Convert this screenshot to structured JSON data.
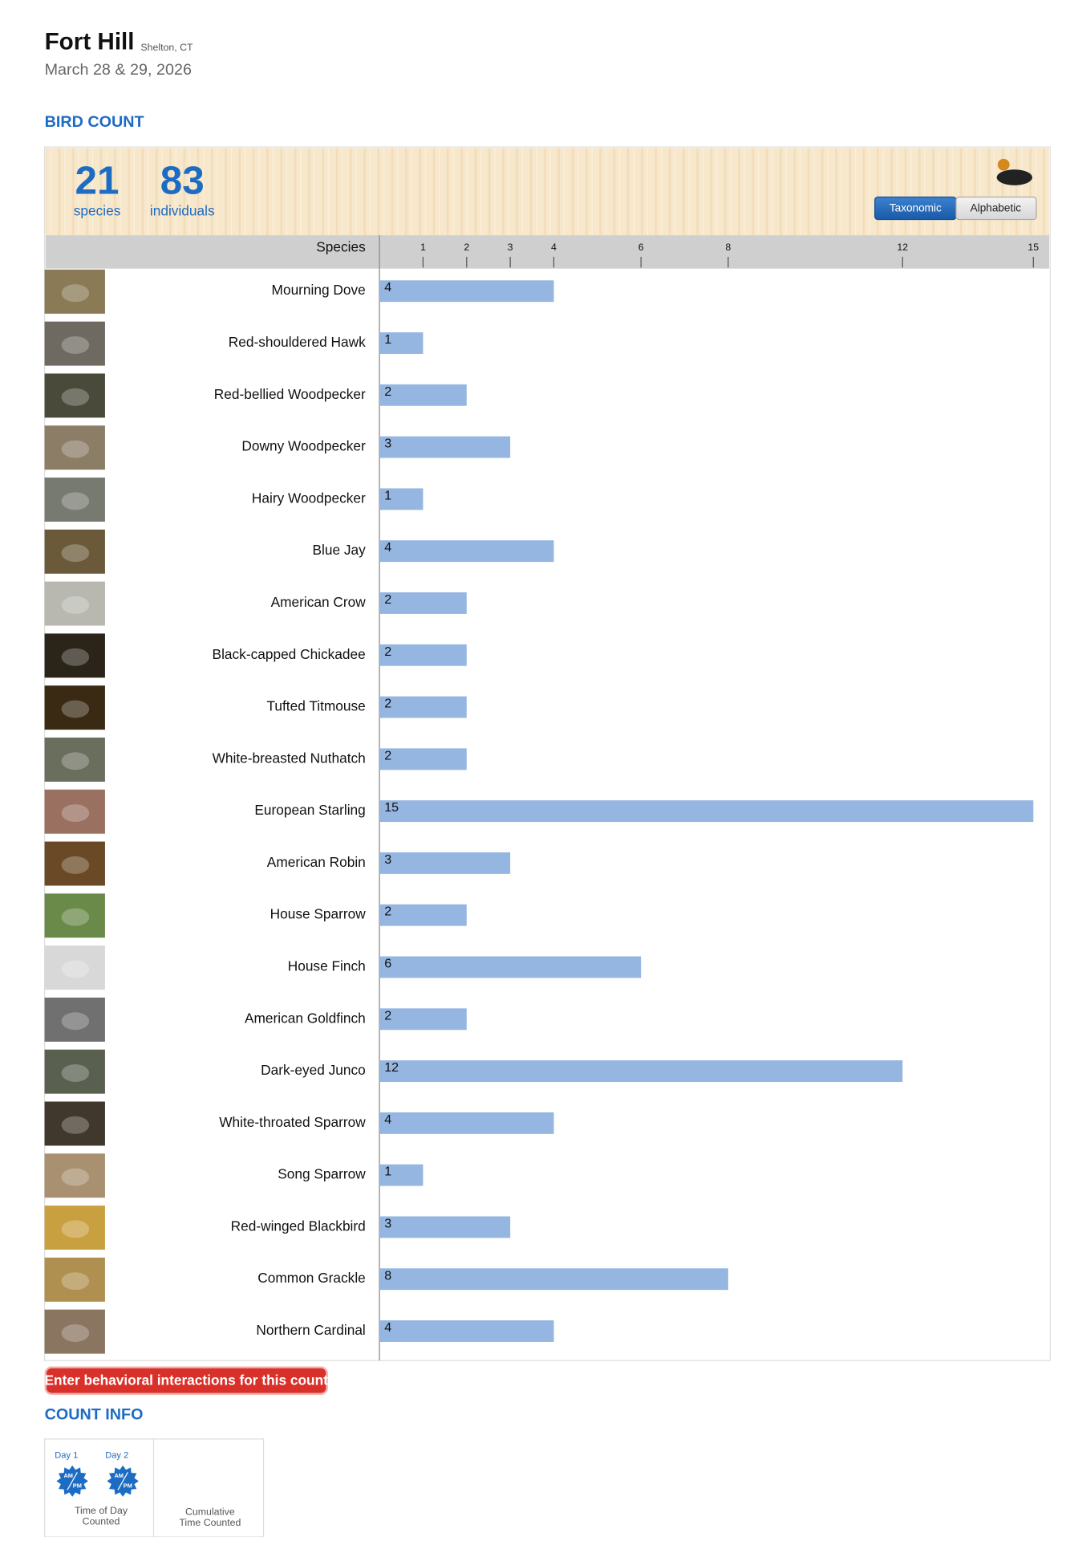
{
  "header": {
    "title": "Fort Hill",
    "location": "Shelton, CT",
    "date": "March 28 & 29, 2026"
  },
  "bird_count": {
    "heading": "BIRD COUNT",
    "species_count": 21,
    "species_label": "species",
    "individuals_count": 83,
    "individuals_label": "individuals",
    "sort_options": [
      "Taxonomic",
      "Alphabetic"
    ],
    "column_header": "Species"
  },
  "chart_data": {
    "type": "bar",
    "orientation": "horizontal",
    "color": "#94b6e0",
    "categories": [
      "Mourning Dove",
      "Red-shouldered Hawk",
      "Red-bellied Woodpecker",
      "Downy Woodpecker",
      "Hairy Woodpecker",
      "Blue Jay",
      "American Crow",
      "Black-capped Chickadee",
      "Tufted Titmouse",
      "White-breasted Nuthatch",
      "European Starling",
      "American Robin",
      "House Sparrow",
      "House Finch",
      "American Goldfinch",
      "Dark-eyed Junco",
      "White-throated Sparrow",
      "Song Sparrow",
      "Red-winged Blackbird",
      "Common Grackle",
      "Northern Cardinal"
    ],
    "values": [
      4,
      1,
      2,
      3,
      1,
      4,
      2,
      2,
      2,
      2,
      15,
      3,
      2,
      6,
      2,
      12,
      4,
      1,
      3,
      8,
      4
    ],
    "xlim": [
      0,
      15
    ],
    "xticks": [
      1,
      2,
      3,
      4,
      6,
      8,
      12,
      15
    ]
  },
  "button": "Enter behavioral interactions for this count",
  "count_info": {
    "heading": "COUNT INFO",
    "days": [
      {
        "label": "Day 1",
        "am": "AM",
        "pm": "PM"
      },
      {
        "label": "Day 2",
        "am": "AM",
        "pm": "PM"
      }
    ],
    "time_of_day": "Time of Day Counted",
    "cumulative": "Cumulative Time Counted"
  }
}
